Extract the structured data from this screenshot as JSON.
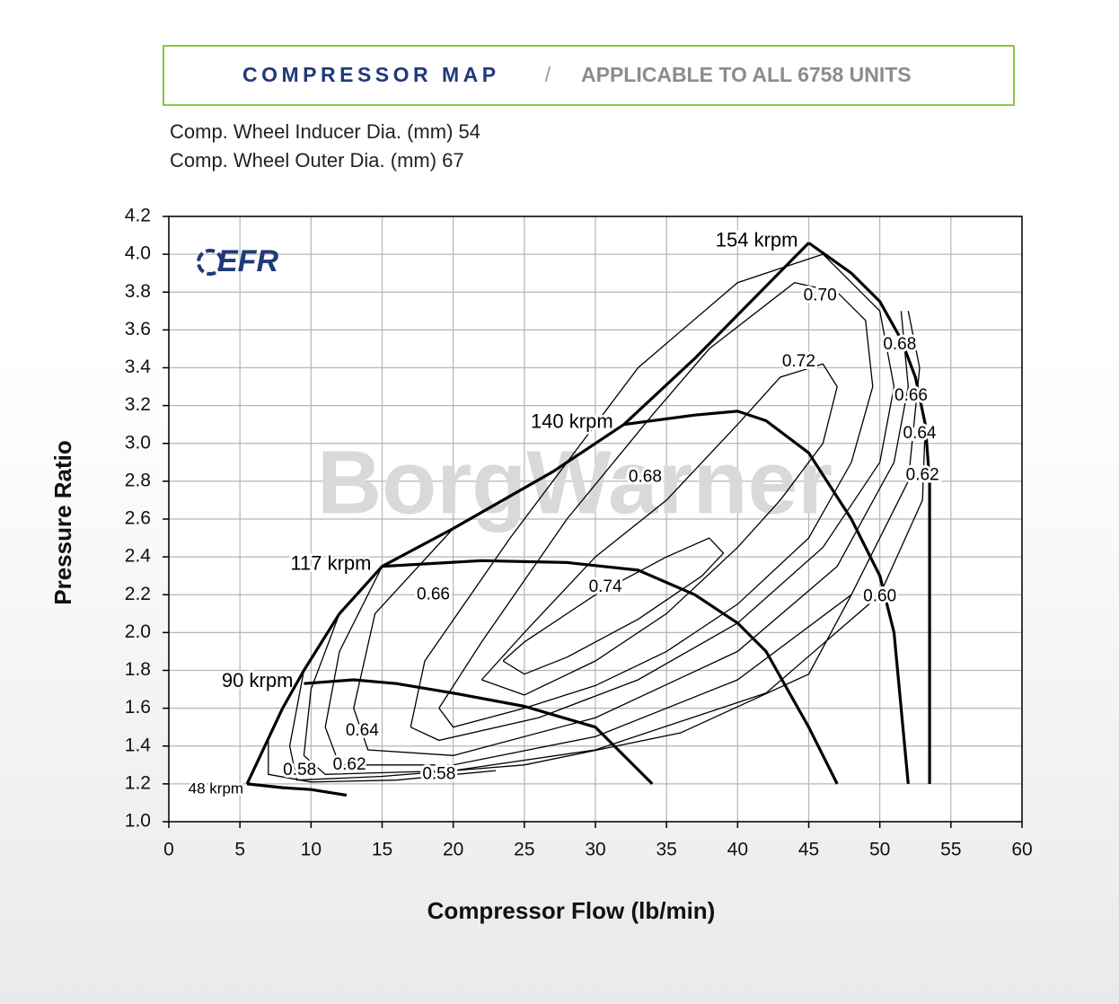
{
  "header": {
    "title": "COMPRESSOR MAP",
    "separator": "/",
    "subtitle": "APPLICABLE TO ALL 6758 UNITS"
  },
  "notes": [
    "Comp. Wheel Inducer Dia. (mm) 54",
    "Comp. Wheel Outer Dia. (mm) 67"
  ],
  "logo": "EFR",
  "watermark": "BorgWarner",
  "chart_data": {
    "type": "line",
    "xlabel": "Compressor Flow (lb/min)",
    "ylabel": "Pressure Ratio",
    "xlim": [
      0,
      60
    ],
    "ylim": [
      1.0,
      4.2
    ],
    "xticks": [
      0,
      5,
      10,
      15,
      20,
      25,
      30,
      35,
      40,
      45,
      50,
      55,
      60
    ],
    "yticks": [
      {
        "value": 1.0,
        "label": "1.0"
      },
      1.2,
      1.4,
      1.6,
      1.8,
      {
        "value": 2.0,
        "label": "2.0"
      },
      2.2,
      2.4,
      2.6,
      2.8,
      {
        "value": 3.0,
        "label": "3.0"
      },
      3.2,
      3.4,
      3.6,
      3.8,
      {
        "value": 4.0,
        "label": "4.0"
      },
      4.2
    ],
    "grid": true,
    "series": [
      {
        "name": "48 krpm",
        "color": "#000000",
        "x": [
          5.5,
          8,
          10,
          12.5
        ],
        "values": [
          1.2,
          1.18,
          1.17,
          1.14
        ]
      },
      {
        "name": "90 krpm",
        "color": "#000000",
        "x": [
          9.5,
          13,
          16,
          20,
          25,
          30,
          34
        ],
        "values": [
          1.73,
          1.75,
          1.73,
          1.68,
          1.61,
          1.5,
          1.2
        ]
      },
      {
        "name": "117 krpm",
        "color": "#000000",
        "x": [
          15,
          22,
          28,
          33,
          37,
          40,
          42,
          45,
          47
        ],
        "values": [
          2.35,
          2.38,
          2.37,
          2.33,
          2.2,
          2.05,
          1.9,
          1.5,
          1.2
        ]
      },
      {
        "name": "140 krpm",
        "color": "#000000",
        "x": [
          32,
          37,
          40,
          42,
          45,
          48,
          50,
          51,
          52
        ],
        "values": [
          3.1,
          3.15,
          3.17,
          3.12,
          2.95,
          2.6,
          2.3,
          2.0,
          1.2
        ]
      },
      {
        "name": "154 krpm",
        "color": "#000000",
        "x": [
          45,
          48,
          50,
          51.5,
          52.5,
          53.2,
          53.5,
          53.5
        ],
        "values": [
          4.06,
          3.9,
          3.75,
          3.55,
          3.35,
          3.1,
          2.8,
          1.2
        ]
      },
      {
        "color": "#000000",
        "x": [
          5.5,
          8,
          9.5,
          12,
          15,
          20,
          27,
          32,
          37,
          45
        ],
        "values": [
          1.2,
          1.6,
          1.8,
          2.1,
          2.35,
          2.55,
          2.85,
          3.1,
          3.45,
          4.06
        ]
      }
    ],
    "efficiency_contours": [
      {
        "x": [
          23.5,
          25,
          30,
          35,
          38,
          39,
          37.5,
          33,
          28,
          25,
          23.5
        ],
        "values": [
          1.85,
          1.95,
          2.2,
          2.4,
          2.5,
          2.42,
          2.3,
          2.07,
          1.87,
          1.78,
          1.85
        ]
      },
      {
        "x": [
          22,
          25,
          30,
          35,
          40,
          43,
          46,
          47,
          46,
          43,
          40,
          35,
          30,
          25,
          22
        ],
        "values": [
          1.75,
          2.0,
          2.4,
          2.7,
          3.1,
          3.35,
          3.42,
          3.3,
          3.0,
          2.7,
          2.45,
          2.1,
          1.85,
          1.67,
          1.75
        ]
      },
      {
        "x": [
          19,
          22,
          28,
          34,
          38,
          44,
          47,
          49,
          49.5,
          48,
          45,
          40,
          35,
          30,
          25,
          20,
          19
        ],
        "values": [
          1.6,
          1.95,
          2.6,
          3.15,
          3.5,
          3.85,
          3.8,
          3.65,
          3.3,
          2.9,
          2.5,
          2.15,
          1.9,
          1.72,
          1.6,
          1.5,
          1.6
        ]
      },
      {
        "x": [
          17,
          18,
          24,
          33,
          40,
          46,
          50,
          51,
          50,
          46,
          40,
          33,
          26,
          19,
          17
        ],
        "values": [
          1.5,
          1.85,
          2.5,
          3.4,
          3.85,
          4.0,
          3.7,
          3.3,
          2.9,
          2.45,
          2.05,
          1.75,
          1.55,
          1.43,
          1.5
        ]
      },
      {
        "x": [
          20,
          14.5,
          13,
          14,
          20,
          30,
          40,
          47,
          51,
          52,
          51.5
        ],
        "values": [
          2.55,
          2.1,
          1.6,
          1.38,
          1.35,
          1.55,
          1.9,
          2.35,
          2.9,
          3.3,
          3.7
        ]
      },
      {
        "x": [
          15,
          12,
          11,
          12,
          20,
          30,
          40,
          48,
          52,
          52.8,
          52
        ],
        "values": [
          2.35,
          1.9,
          1.5,
          1.3,
          1.3,
          1.45,
          1.75,
          2.2,
          2.8,
          3.4,
          3.7
        ]
      },
      {
        "x": [
          12,
          10,
          9.5,
          11,
          20,
          30,
          42,
          50,
          53,
          53.2
        ],
        "values": [
          2.1,
          1.7,
          1.35,
          1.25,
          1.27,
          1.38,
          1.68,
          2.2,
          2.7,
          3.1
        ]
      },
      {
        "x": [
          9.5,
          8.5,
          9,
          15,
          25,
          36,
          45,
          48
        ],
        "values": [
          1.8,
          1.4,
          1.22,
          1.24,
          1.3,
          1.47,
          1.78,
          2.2
        ]
      },
      {
        "x": [
          7,
          7,
          10,
          16,
          23
        ],
        "values": [
          1.45,
          1.25,
          1.21,
          1.22,
          1.27
        ]
      }
    ],
    "annotations": [
      {
        "text": "0.70",
        "x": 45.8,
        "y": 3.78
      },
      {
        "text": "0.68",
        "x": 51.4,
        "y": 3.52
      },
      {
        "text": "0.72",
        "x": 44.3,
        "y": 3.43
      },
      {
        "text": "0.66",
        "x": 52.2,
        "y": 3.25
      },
      {
        "text": "0.64",
        "x": 52.8,
        "y": 3.05
      },
      {
        "text": "0.62",
        "x": 53,
        "y": 2.83
      },
      {
        "text": "0.68",
        "x": 33.5,
        "y": 2.82
      },
      {
        "text": "0.60",
        "x": 50,
        "y": 2.19
      },
      {
        "text": "0.74",
        "x": 30.7,
        "y": 2.24
      },
      {
        "text": "0.66",
        "x": 18.6,
        "y": 2.2
      },
      {
        "text": "0.64",
        "x": 13.6,
        "y": 1.48
      },
      {
        "text": "0.62",
        "x": 12.7,
        "y": 1.3
      },
      {
        "text": "0.58",
        "x": 9.2,
        "y": 1.27
      },
      {
        "text": "0.58",
        "x": 19,
        "y": 1.25
      }
    ]
  }
}
